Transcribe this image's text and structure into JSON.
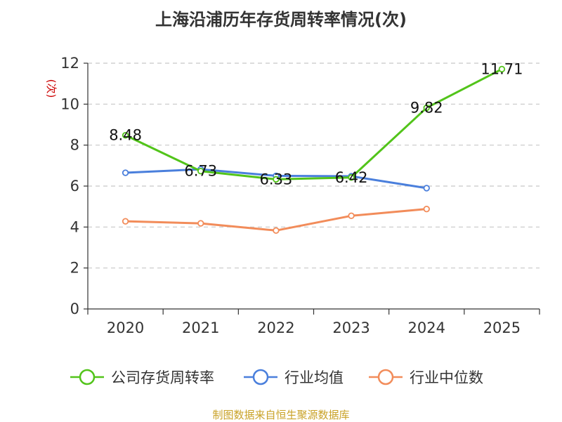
{
  "title": "上海沿浦历年存货周转率情况(次)",
  "source": "制图数据来自恒生聚源数据库",
  "chart_data": {
    "type": "line",
    "title": "上海沿浦历年存货周转率情况(次)",
    "ylabel": "(次)",
    "categories": [
      "2020",
      "2021",
      "2022",
      "2023",
      "2024",
      "2025"
    ],
    "ylim": [
      0,
      12
    ],
    "yticks": [
      0,
      2,
      4,
      6,
      8,
      10,
      12
    ],
    "grid": true,
    "legend_position": "bottom",
    "series": [
      {
        "name": "公司存货周转率",
        "color": "#52c41a",
        "values": [
          8.48,
          6.73,
          6.33,
          6.42,
          9.82,
          11.71
        ],
        "labels": [
          "8.48",
          "6.73",
          "6.33",
          "6.42",
          "9.82",
          "11.71"
        ]
      },
      {
        "name": "行业均值",
        "color": "#4a7fdc",
        "values": [
          6.65,
          6.82,
          6.5,
          6.48,
          5.9,
          null
        ]
      },
      {
        "name": "行业中位数",
        "color": "#f28c5a",
        "values": [
          4.28,
          4.18,
          3.83,
          4.55,
          4.88,
          null
        ]
      }
    ]
  }
}
